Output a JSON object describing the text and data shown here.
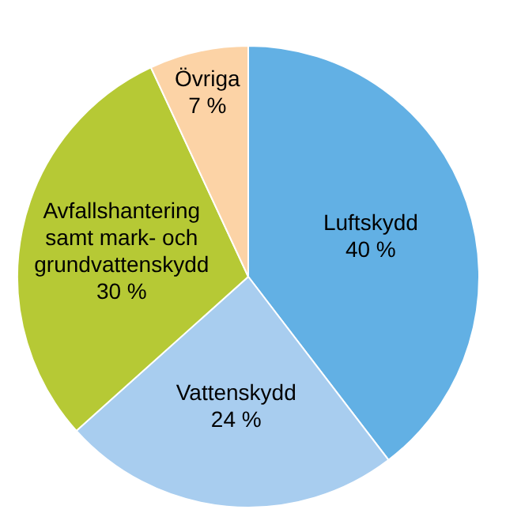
{
  "chart_data": {
    "type": "pie",
    "categories": [
      "Luftskydd",
      "Vattenskydd",
      "Avfallshantering samt mark- och grundvattenskydd",
      "Övriga"
    ],
    "values": [
      40,
      24,
      30,
      7
    ],
    "colors": [
      "#62b0e4",
      "#a8cdef",
      "#b6c935",
      "#fcd3a6"
    ],
    "value_labels": [
      "40 %",
      "24 %",
      "30 %",
      "7 %"
    ]
  }
}
